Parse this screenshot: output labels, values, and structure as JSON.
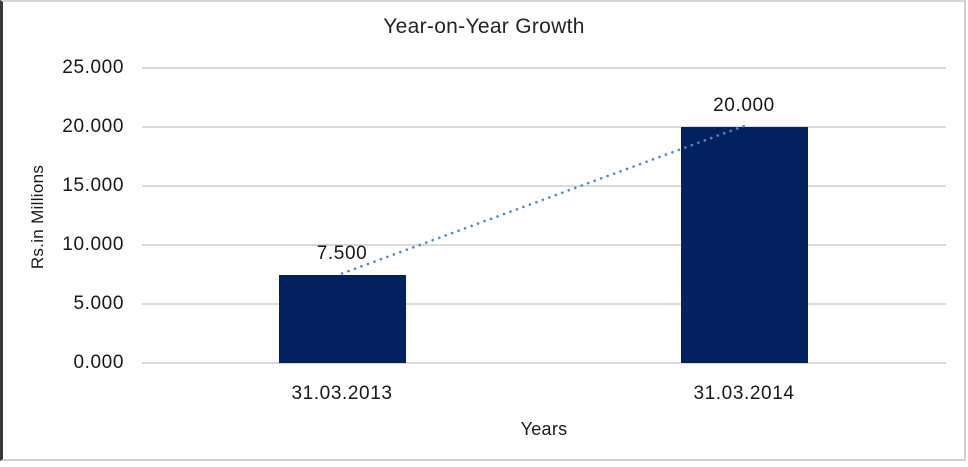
{
  "chart_data": {
    "type": "bar",
    "title": "Year-on-Year Growth",
    "xlabel": "Years",
    "ylabel": "Rs.in Millions",
    "categories": [
      "31.03.2013",
      "31.03.2014"
    ],
    "values": [
      7.5,
      20
    ],
    "value_labels": [
      "7.500",
      "20.000"
    ],
    "yticks": [
      {
        "value": 0,
        "label": "0.000"
      },
      {
        "value": 5,
        "label": "5.000"
      },
      {
        "value": 10,
        "label": "10.000"
      },
      {
        "value": 15,
        "label": "15.000"
      },
      {
        "value": 20,
        "label": "20.000"
      },
      {
        "value": 25,
        "label": "25.000"
      }
    ],
    "ylim": [
      0,
      25
    ],
    "grid": "horizontal",
    "legend": "none",
    "trendline": {
      "style": "dotted",
      "connects": [
        "31.03.2013",
        "31.03.2014"
      ]
    },
    "bar_color": "#03215f",
    "trendline_color": "#4e87c7",
    "gridline_color": "#d9d9d9"
  }
}
